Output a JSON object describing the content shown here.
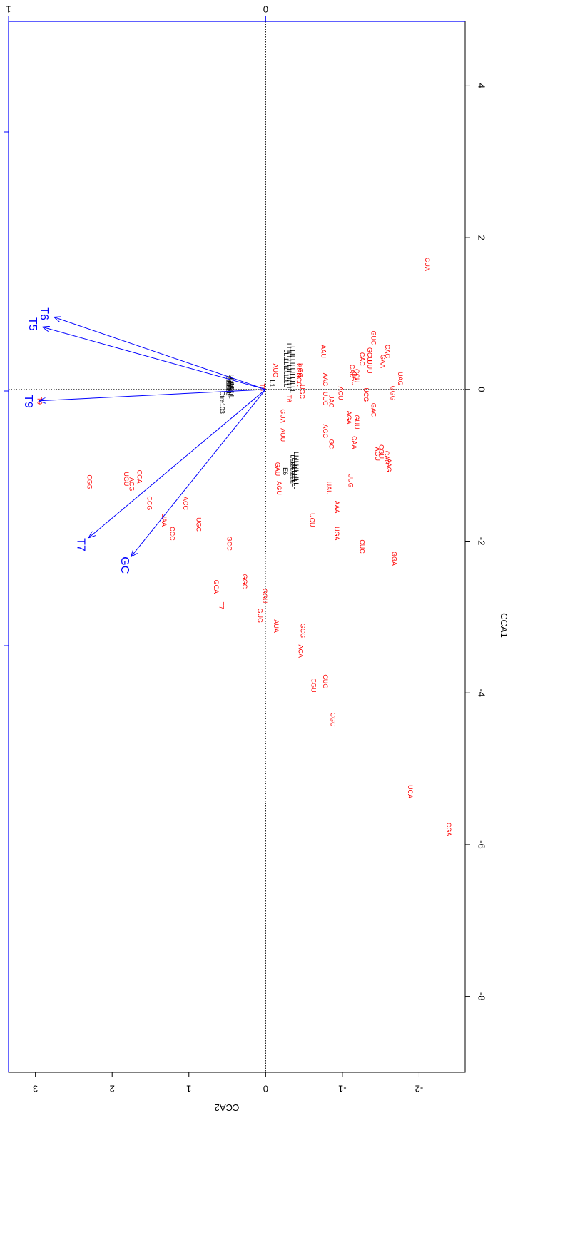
{
  "chart_data": {
    "type": "scatter",
    "xlabel": "CCA1",
    "ylabel": "CCA2",
    "xlim": [
      -9,
      4.85
    ],
    "ylim": [
      -2.6,
      3.35
    ],
    "x_ticks": [
      "-8",
      "-6",
      "-4",
      "-2",
      "0",
      "2",
      "4"
    ],
    "x_tick_values": [
      -8,
      -6,
      -4,
      -2,
      0,
      2,
      4
    ],
    "y_ticks": [
      "-2",
      "-1",
      "0",
      "1",
      "2",
      "3"
    ],
    "y_tick_values": [
      -2,
      -1,
      0,
      1,
      2,
      3
    ],
    "secondary_axis_ticks": [
      "0",
      "1"
    ],
    "secondary_axis_tick_positions_cca2": [
      0,
      3.35
    ],
    "colors": {
      "codon": "#ff0000",
      "sample": "#000000",
      "vector": "#0000ff",
      "axis": "#0000ff"
    },
    "origin_lines": "dotted",
    "codon_points": [
      {
        "label": "CUA",
        "x": 1.65,
        "y": -2.1
      },
      {
        "label": "GUC",
        "x": 0.68,
        "y": -1.4
      },
      {
        "label": "GCU",
        "x": 0.46,
        "y": -1.35
      },
      {
        "label": "CAC",
        "x": 0.4,
        "y": -1.25
      },
      {
        "label": "GAA",
        "x": 0.37,
        "y": -1.52
      },
      {
        "label": "CAG",
        "x": 0.5,
        "y": -1.58
      },
      {
        "label": "UUU",
        "x": 0.3,
        "y": -1.35
      },
      {
        "label": "CAU",
        "x": 0.24,
        "y": -1.12
      },
      {
        "label": "CCU",
        "x": 0.18,
        "y": -1.18
      },
      {
        "label": "GAU",
        "x": 0.14,
        "y": -1.15
      },
      {
        "label": "AAU",
        "x": 0.5,
        "y": -0.75
      },
      {
        "label": "AAC",
        "x": 0.13,
        "y": -0.77
      },
      {
        "label": "UAG",
        "x": 0.14,
        "y": -1.75
      },
      {
        "label": "GGG",
        "x": -0.05,
        "y": -1.65
      },
      {
        "label": "ACU",
        "x": -0.05,
        "y": -0.97
      },
      {
        "label": "UCG",
        "x": -0.07,
        "y": -1.3
      },
      {
        "label": "GAC",
        "x": -0.27,
        "y": -1.4
      },
      {
        "label": "UUC",
        "x": -0.12,
        "y": -0.77
      },
      {
        "label": "UAC",
        "x": -0.15,
        "y": -0.85
      },
      {
        "label": "AUG",
        "x": 0.25,
        "y": -0.12
      },
      {
        "label": "UCC",
        "x": 0.13,
        "y": -0.43
      },
      {
        "label": "CGG",
        "x": 0.25,
        "y": -0.43
      },
      {
        "label": "UGG",
        "x": 0.25,
        "y": -0.45
      },
      {
        "label": "UGC",
        "x": -0.03,
        "y": -0.47
      },
      {
        "label": "T6",
        "x": -0.12,
        "y": -0.3
      },
      {
        "label": "T5",
        "x": 0.03,
        "y": 0.05
      },
      {
        "label": "GUA",
        "x": -0.35,
        "y": -0.22
      },
      {
        "label": "AGA",
        "x": -0.37,
        "y": -1.08
      },
      {
        "label": "GUU",
        "x": -0.43,
        "y": -1.18
      },
      {
        "label": "AUU",
        "x": -0.6,
        "y": -0.22
      },
      {
        "label": "AGC",
        "x": -0.55,
        "y": -0.77
      },
      {
        "label": "GC",
        "x": -0.72,
        "y": -0.85
      },
      {
        "label": "CAA",
        "x": -0.7,
        "y": -1.15
      },
      {
        "label": "AGU",
        "x": -0.85,
        "y": -1.45
      },
      {
        "label": "CGU",
        "x": -0.82,
        "y": -1.5
      },
      {
        "label": "CAG",
        "x": -0.9,
        "y": -1.57
      },
      {
        "label": "AAG",
        "x": -1.0,
        "y": -1.6
      },
      {
        "label": "GAU",
        "x": -1.05,
        "y": -0.15
      },
      {
        "label": "AGU",
        "x": -1.3,
        "y": -0.17
      },
      {
        "label": "UUG",
        "x": -1.2,
        "y": -1.1
      },
      {
        "label": "UAU",
        "x": -1.3,
        "y": -0.82
      },
      {
        "label": "AAA",
        "x": -1.55,
        "y": -0.92
      },
      {
        "label": "UCU",
        "x": -1.72,
        "y": -0.6
      },
      {
        "label": "UGA",
        "x": -1.9,
        "y": -0.92
      },
      {
        "label": "CUC",
        "x": -2.07,
        "y": -1.25
      },
      {
        "label": "GGA",
        "x": -2.23,
        "y": -1.67
      },
      {
        "label": "CGG",
        "x": -1.22,
        "y": 2.3
      },
      {
        "label": "UGU",
        "x": -1.18,
        "y": 1.82
      },
      {
        "label": "ACG",
        "x": -1.25,
        "y": 1.75
      },
      {
        "label": "CCA",
        "x": -1.15,
        "y": 1.65
      },
      {
        "label": "CCG",
        "x": -1.5,
        "y": 1.52
      },
      {
        "label": "ACC",
        "x": -1.5,
        "y": 1.05
      },
      {
        "label": "UAA",
        "x": -1.72,
        "y": 1.33
      },
      {
        "label": "UGC",
        "x": -1.78,
        "y": 0.88
      },
      {
        "label": "CCC",
        "x": -1.9,
        "y": 1.22
      },
      {
        "label": "GCC",
        "x": -2.03,
        "y": 0.48
      },
      {
        "label": "GCA",
        "x": -2.6,
        "y": 0.65
      },
      {
        "label": "GGC",
        "x": -2.53,
        "y": 0.28
      },
      {
        "label": "GGU",
        "x": -2.72,
        "y": 0.02
      },
      {
        "label": "T7",
        "x": -2.85,
        "y": 0.58
      },
      {
        "label": "GUG",
        "x": -2.98,
        "y": 0.08
      },
      {
        "label": "AUA",
        "x": -3.12,
        "y": -0.13
      },
      {
        "label": "GCG",
        "x": -3.18,
        "y": -0.48
      },
      {
        "label": "ACA",
        "x": -3.45,
        "y": -0.45
      },
      {
        "label": "CGU",
        "x": -3.9,
        "y": -0.62
      },
      {
        "label": "CUG",
        "x": -3.85,
        "y": -0.77
      },
      {
        "label": "CGC",
        "x": -4.35,
        "y": -0.87
      },
      {
        "label": "UCA",
        "x": -5.3,
        "y": -1.88
      },
      {
        "label": "CGA",
        "x": -5.8,
        "y": -2.38
      },
      {
        "label": "T9",
        "x": -0.15,
        "y": 2.95
      }
    ],
    "sample_points": [
      {
        "label": "L1",
        "x": 0.08,
        "y": -0.08
      },
      {
        "label": "Ctre103",
        "x": -0.17,
        "y": 0.57
      },
      {
        "label": "E6",
        "x": -1.08,
        "y": -0.25
      }
    ],
    "sample_clusters": [
      {
        "x": 0.3,
        "y": -0.3,
        "count": 14,
        "spread_x": 0.28,
        "spread_y": 0.04
      },
      {
        "x": 0.05,
        "y": 0.47,
        "count": 10,
        "spread_x": 0.1,
        "spread_y": 0.02
      },
      {
        "x": -1.05,
        "y": -0.37,
        "count": 10,
        "spread_x": 0.2,
        "spread_y": 0.02
      }
    ],
    "vectors": [
      {
        "label": "T6",
        "x": 0.95,
        "y": 2.75
      },
      {
        "label": "T5",
        "x": 0.82,
        "y": 2.9
      },
      {
        "label": "T9",
        "x": -0.15,
        "y": 2.95
      },
      {
        "label": "T7",
        "x": -1.95,
        "y": 2.3
      },
      {
        "label": "GC",
        "x": -2.2,
        "y": 1.75
      }
    ]
  }
}
